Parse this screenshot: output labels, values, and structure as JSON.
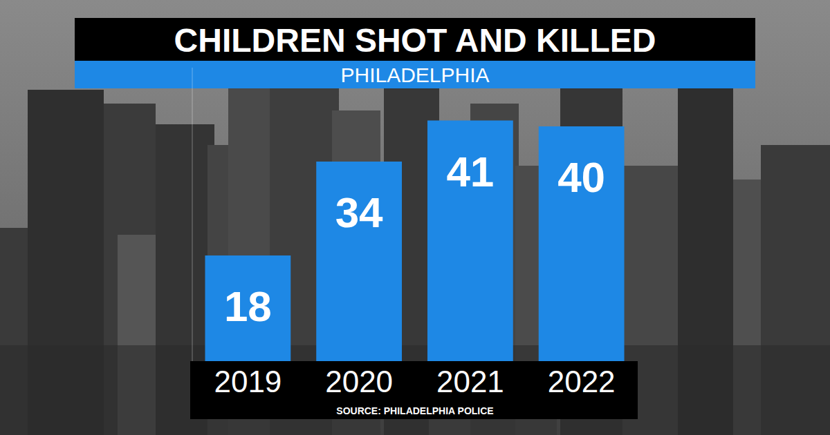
{
  "chart_data": {
    "type": "bar",
    "title": "CHILDREN SHOT AND KILLED",
    "subtitle": "PHILADELPHIA",
    "source": "SOURCE: PHILADELPHIA POLICE",
    "categories": [
      "2019",
      "2020",
      "2021",
      "2022"
    ],
    "values": [
      18,
      34,
      41,
      40
    ],
    "color": "#1e88e5",
    "ylim": [
      0,
      50
    ],
    "data_labels": true,
    "tick_labels": "x",
    "grid": false
  }
}
